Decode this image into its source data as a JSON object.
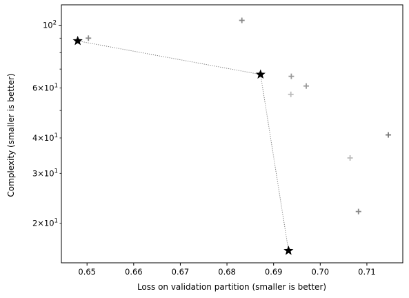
{
  "chart_data": {
    "type": "scatter",
    "xlabel": "Loss on validation partition (smaller is better)",
    "ylabel": "Complexity (smaller is better)",
    "xlim": [
      0.6445,
      0.7177
    ],
    "ylim": [
      14.5,
      118
    ],
    "y_scale": "log",
    "grid": false,
    "x_ticks": [
      {
        "value": 0.65,
        "label": "0.65"
      },
      {
        "value": 0.66,
        "label": "0.66"
      },
      {
        "value": 0.67,
        "label": "0.67"
      },
      {
        "value": 0.68,
        "label": "0.68"
      },
      {
        "value": 0.69,
        "label": "0.69"
      },
      {
        "value": 0.7,
        "label": "0.70"
      },
      {
        "value": 0.71,
        "label": "0.71"
      }
    ],
    "y_ticks_major": [
      {
        "value": 100,
        "base": "10",
        "exp": "2"
      }
    ],
    "y_ticks_minor_labeled": [
      {
        "value": 20,
        "mant": "2",
        "base": "10",
        "exp": "1"
      },
      {
        "value": 30,
        "mant": "3",
        "base": "10",
        "exp": "1"
      },
      {
        "value": 40,
        "mant": "4",
        "base": "10",
        "exp": "1"
      },
      {
        "value": 60,
        "mant": "6",
        "base": "10",
        "exp": "1"
      }
    ],
    "y_ticks_minor_unlabeled": [
      50,
      70,
      80,
      90
    ],
    "pareto_front": [
      {
        "x": 0.648,
        "y": 88
      },
      {
        "x": 0.6872,
        "y": 67
      },
      {
        "x": 0.6932,
        "y": 16
      }
    ],
    "candidates": [
      {
        "x": 0.6503,
        "y": 90,
        "color": "#888888"
      },
      {
        "x": 0.6832,
        "y": 104,
        "color": "#888888"
      },
      {
        "x": 0.6938,
        "y": 66,
        "color": "#999999"
      },
      {
        "x": 0.6937,
        "y": 57,
        "color": "#bbbbbb"
      },
      {
        "x": 0.697,
        "y": 61,
        "color": "#999999"
      },
      {
        "x": 0.7146,
        "y": 41,
        "color": "#777777"
      },
      {
        "x": 0.7064,
        "y": 34,
        "color": "#bbbbbb"
      },
      {
        "x": 0.7082,
        "y": 22,
        "color": "#888888"
      }
    ],
    "colors": {
      "front": "#000000",
      "front_line": "#777777",
      "axes": "#000000"
    }
  }
}
